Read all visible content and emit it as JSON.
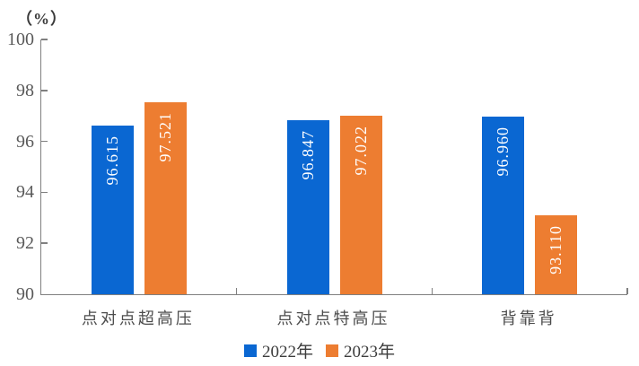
{
  "chart_data": {
    "type": "bar",
    "title": "（%）",
    "categories": [
      "点对点超高压",
      "点对点特高压",
      "背靠背"
    ],
    "series": [
      {
        "name": "2022年",
        "color": "#0A67D2",
        "values": [
          96.615,
          96.847,
          96.96
        ],
        "labels": [
          "96.615",
          "96.847",
          "96.960"
        ]
      },
      {
        "name": "2023年",
        "color": "#ED7D31",
        "values": [
          97.521,
          97.022,
          93.11
        ],
        "labels": [
          "97.521",
          "97.022",
          "93.110"
        ]
      }
    ],
    "ylabel": "（%）",
    "xlabel": "",
    "ylim": [
      90,
      100
    ],
    "yticks": [
      90,
      92,
      94,
      96,
      98,
      100
    ],
    "grid": false,
    "legend_position": "bottom-center",
    "colors": {
      "axis": "#808080",
      "tick_label": "#595959",
      "category_label": "#4c4c4c",
      "legend_text": "#3d3d3d",
      "bar_value_label": "#ffffff",
      "background": "#ffffff"
    }
  }
}
